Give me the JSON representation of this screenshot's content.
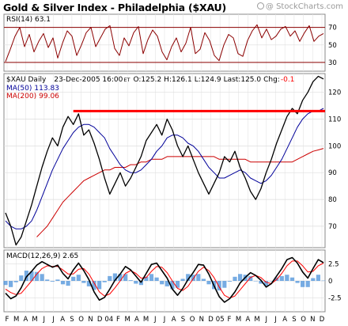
{
  "header": {
    "title": "Gold & Silver Index - Philadelphia ($XAU)",
    "copyright": "@ StockCharts.com"
  },
  "chart_data": [
    {
      "type": "line",
      "panel": "RSI",
      "label_prefix": "RSI(14)",
      "label_value": "63.1",
      "ylim": [
        20,
        85
      ],
      "reference_lines": [
        30,
        70
      ],
      "y_ticks": [
        {
          "value": 70,
          "text": "70"
        },
        {
          "value": 50,
          "text": "50"
        },
        {
          "value": 30,
          "text": "30"
        }
      ],
      "series": [
        {
          "name": "RSI(14)",
          "color": "#8b0000",
          "values": [
            31,
            45,
            60,
            70,
            48,
            62,
            42,
            54,
            63,
            47,
            58,
            35,
            52,
            66,
            60,
            38,
            50,
            64,
            70,
            48,
            58,
            68,
            72,
            46,
            38,
            58,
            49,
            64,
            71,
            40,
            56,
            67,
            60,
            42,
            33,
            48,
            58,
            42,
            52,
            70,
            40,
            45,
            64,
            55,
            38,
            32,
            50,
            62,
            58,
            40,
            37,
            55,
            66,
            73,
            58,
            68,
            56,
            60,
            68,
            71,
            60,
            66,
            54,
            64,
            72,
            54,
            60,
            63
          ]
        }
      ]
    },
    {
      "type": "line",
      "panel": "Price",
      "ticker_label": "$XAU Daily",
      "date_label": "23-Dec-2005 16:00",
      "date_suffix": "ET",
      "open_label": "O:",
      "open": "125.2",
      "high_label": "H:",
      "high": "126.1",
      "low_label": "L:",
      "low": "124.9",
      "last_label": "Last:",
      "last": "125.0",
      "chg_label": "Chg:",
      "chg": "-0.1",
      "ma50_label": "MA(50)",
      "ma50_value": "113.83",
      "ma200_label": "MA(200)",
      "ma200_value": "99.06",
      "ylim": [
        62,
        127
      ],
      "horizontal_line": {
        "y": 113,
        "color": "#ff0000"
      },
      "y_ticks": [
        {
          "value": 120,
          "text": "120"
        },
        {
          "value": 110,
          "text": "110"
        },
        {
          "value": 100,
          "text": "100"
        },
        {
          "value": 90,
          "text": "90"
        },
        {
          "value": 80,
          "text": "80"
        },
        {
          "value": 70,
          "text": "70"
        }
      ],
      "series": [
        {
          "name": "$XAU",
          "color": "#000000",
          "values": [
            75,
            70,
            63,
            66,
            72,
            78,
            85,
            92,
            98,
            103,
            100,
            107,
            111,
            108,
            112,
            104,
            106,
            101,
            95,
            88,
            82,
            86,
            90,
            85,
            88,
            92,
            96,
            102,
            105,
            108,
            104,
            110,
            106,
            100,
            96,
            100,
            95,
            90,
            86,
            82,
            86,
            90,
            96,
            94,
            98,
            92,
            88,
            83,
            80,
            84,
            90,
            95,
            101,
            106,
            111,
            114,
            112,
            117,
            120,
            124,
            126,
            125
          ]
        },
        {
          "name": "MA(50)",
          "color": "#000099",
          "values": [
            72,
            70,
            69,
            69,
            70,
            72,
            76,
            81,
            86,
            91,
            95,
            99,
            102,
            105,
            107,
            108,
            108,
            107,
            105,
            103,
            99,
            96,
            93,
            91,
            90,
            90,
            91,
            93,
            95,
            98,
            100,
            103,
            104,
            104,
            103,
            101,
            100,
            98,
            95,
            92,
            90,
            88,
            88,
            89,
            90,
            91,
            90,
            88,
            87,
            86,
            87,
            89,
            92,
            95,
            99,
            103,
            107,
            110,
            112,
            113,
            113,
            114
          ]
        },
        {
          "name": "MA(200)",
          "color": "#cc0000",
          "values": [
            null,
            null,
            null,
            null,
            null,
            null,
            66,
            68,
            70,
            73,
            76,
            79,
            81,
            83,
            85,
            87,
            88,
            89,
            90,
            91,
            91,
            92,
            92,
            92,
            93,
            93,
            94,
            94,
            95,
            95,
            95,
            96,
            96,
            96,
            96,
            96,
            96,
            96,
            96,
            96,
            96,
            95,
            95,
            95,
            95,
            95,
            95,
            94,
            94,
            94,
            94,
            94,
            94,
            94,
            94,
            94,
            95,
            96,
            97,
            98,
            98.5,
            99.06
          ]
        }
      ]
    },
    {
      "type": "line",
      "panel": "MACD",
      "label_prefix": "MACD(12,26,9)",
      "label_value": "2.65",
      "ylim": [
        -4.5,
        4.5
      ],
      "y_ticks": [
        {
          "value": 2.5,
          "text": "2.5"
        },
        {
          "value": 0,
          "text": "0"
        },
        {
          "value": -2.5,
          "text": "-2.5"
        }
      ],
      "series": [
        {
          "name": "MACD",
          "color": "#000000",
          "values": [
            -1.8,
            -2.6,
            -2.2,
            -1,
            0.6,
            1.4,
            2.3,
            2.8,
            2.4,
            2,
            2.3,
            1.1,
            0.3,
            1.6,
            2.6,
            1.5,
            0.2,
            -1.6,
            -2.8,
            -2.4,
            -1.2,
            0.1,
            1,
            2.1,
            1.6,
            0.7,
            -0.2,
            1.1,
            2.4,
            2.6,
            1.5,
            0.4,
            -1.2,
            -2.1,
            -1.1,
            0.2,
            1.2,
            2.4,
            2.3,
            1,
            -0.7,
            -2.3,
            -3.1,
            -2.6,
            -1.6,
            -0.3,
            0.5,
            1.2,
            0.8,
            0.1,
            -0.9,
            -0.4,
            0.7,
            1.8,
            3.1,
            3.4,
            2.6,
            1.3,
            0.4,
            1.8,
            3.1,
            2.65
          ]
        },
        {
          "name": "Signal",
          "color": "#ff0000",
          "values": [
            -1.2,
            -1.7,
            -2,
            -1.8,
            -0.9,
            0,
            1,
            1.8,
            2.2,
            2.1,
            2.1,
            1.6,
            1,
            1,
            1.7,
            1.8,
            1,
            -0.3,
            -1.6,
            -2.2,
            -1.9,
            -1,
            0,
            1.1,
            1.5,
            1.1,
            0.4,
            0.5,
            1.4,
            2.1,
            2,
            1.2,
            0,
            -1.1,
            -1.4,
            -0.8,
            0.3,
            1.4,
            2,
            1.5,
            0.5,
            -0.9,
            -2.1,
            -2.5,
            -2.2,
            -1.3,
            -0.4,
            0.5,
            0.8,
            0.5,
            -0.2,
            -0.4,
            0.2,
            1.1,
            2.2,
            2.9,
            2.9,
            2.2,
            1.3,
            1.4,
            2.2,
            2.6
          ]
        }
      ]
    }
  ],
  "x_axis": {
    "labels": [
      "F",
      "M",
      "A",
      "M",
      "J",
      "J",
      "A",
      "S",
      "O",
      "N",
      "D",
      "04",
      "F",
      "M",
      "A",
      "M",
      "J",
      "J",
      "A",
      "S",
      "O",
      "N",
      "D",
      "05",
      "F",
      "M",
      "A",
      "M",
      "J",
      "J",
      "A",
      "S",
      "O",
      "N",
      "D"
    ]
  }
}
